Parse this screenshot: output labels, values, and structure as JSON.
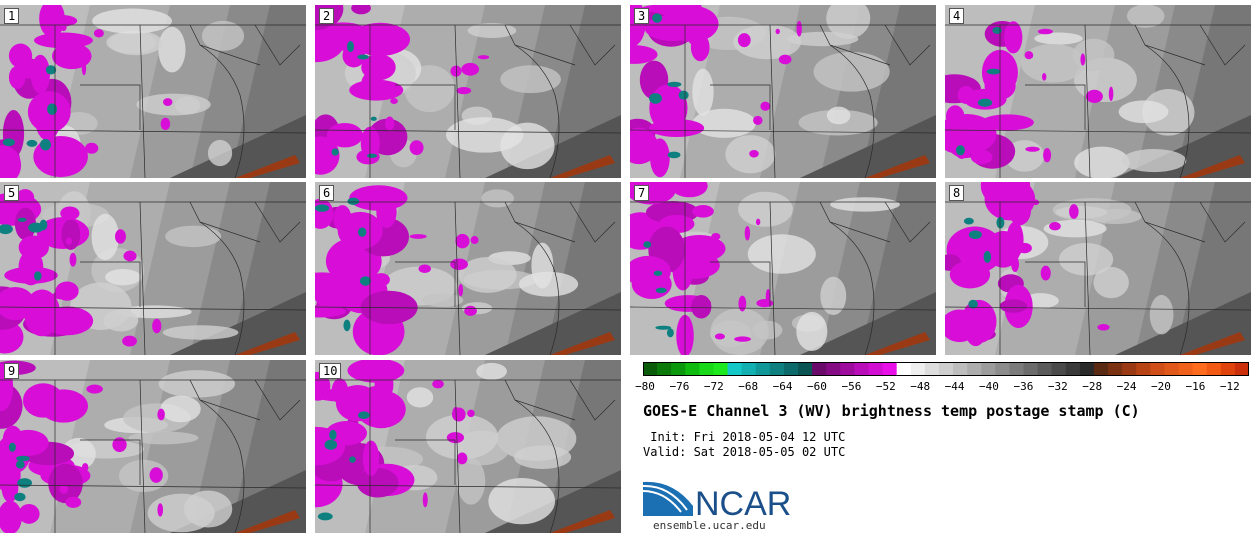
{
  "panels": [
    {
      "label": "1"
    },
    {
      "label": "2"
    },
    {
      "label": "3"
    },
    {
      "label": "4"
    },
    {
      "label": "5"
    },
    {
      "label": "6"
    },
    {
      "label": "7"
    },
    {
      "label": "8"
    },
    {
      "label": "9"
    },
    {
      "label": "10"
    }
  ],
  "colorbar": {
    "ticks": [
      "−80",
      "−76",
      "−72",
      "−68",
      "−64",
      "−60",
      "−56",
      "−52",
      "−48",
      "−44",
      "−40",
      "−36",
      "−32",
      "−28",
      "−24",
      "−20",
      "−16",
      "−12"
    ],
    "colors": [
      "#0a5c0a",
      "#0b7a0b",
      "#0c980c",
      "#10bb10",
      "#18d818",
      "#1ee81e",
      "#14c8c8",
      "#12b0b0",
      "#109898",
      "#0e8080",
      "#0c6a6a",
      "#0a5454",
      "#6a0a6a",
      "#840b84",
      "#9e0c9e",
      "#b80db8",
      "#d20ed2",
      "#e80fe8",
      "#ffffff",
      "#efefef",
      "#dedede",
      "#cecece",
      "#bdbdbd",
      "#adadad",
      "#9c9c9c",
      "#8c8c8c",
      "#7b7b7b",
      "#6b6b6b",
      "#5a5a5a",
      "#4a4a4a",
      "#3a3a3a",
      "#2a2a2a",
      "#5a2a12",
      "#7a3212",
      "#9a3a14",
      "#b84416",
      "#d04e18",
      "#e0581a",
      "#f0621c",
      "#ff6c1e",
      "#f25a14",
      "#e0440c",
      "#cc300a"
    ]
  },
  "title": "GOES-E Channel 3 (WV) brightness temp postage stamp (C)",
  "init": " Init: Fri 2018-05-04 12 UTC",
  "valid": "Valid: Sat 2018-05-05 02 UTC",
  "logo": {
    "text": "NCAR",
    "url": "ensemble.ucar.edu"
  }
}
